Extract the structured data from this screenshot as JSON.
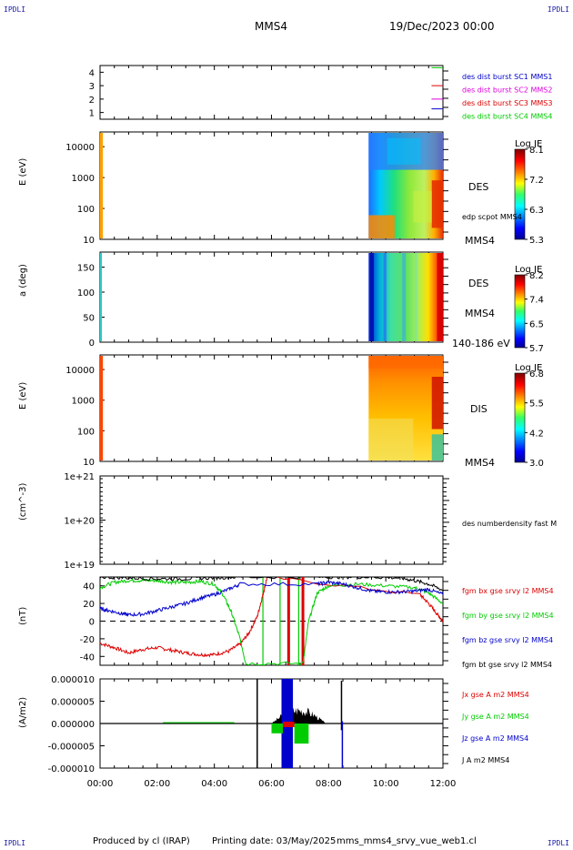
{
  "header": {
    "corner_tl": "IPDLI",
    "corner_tr": "IPDLI",
    "corner_bl": "IPDLI",
    "corner_br": "IPDLI",
    "spacecraft": "MMS4",
    "date": "19/Dec/2023 00:00"
  },
  "footer": {
    "produced_by": "Produced by cl (IRAP)",
    "printing_date": "Printing date: 03/May/2025",
    "filename": "mms_mms4_srvy_vue_web1.cl"
  },
  "colors": {
    "red": "#dd0000",
    "green": "#00cc00",
    "blue": "#0000cc",
    "magenta": "#dd00dd",
    "black": "#000000"
  },
  "chart_data": {
    "type": "line",
    "x_axis": {
      "label": "",
      "ticks": [
        "00:00",
        "02:00",
        "04:00",
        "06:00",
        "08:00",
        "10:00",
        "12:00"
      ],
      "range_hours": [
        0,
        12
      ]
    },
    "panels": [
      {
        "id": "burst",
        "type": "line",
        "ylabel": "",
        "yticks": [
          "4",
          "3",
          "2",
          "1"
        ],
        "ylim": [
          0.5,
          4.5
        ],
        "legend": [
          {
            "name": "des dist burst SC1 MMS1",
            "color": "#0000cc"
          },
          {
            "name": "des dist burst SC2 MMS2",
            "color": "#dd00dd"
          },
          {
            "name": "des dist burst SC3 MMS3",
            "color": "#dd0000"
          },
          {
            "name": "des dist burst SC4 MMS4",
            "color": "#00cc00"
          }
        ],
        "series": [
          {
            "color": "#00cc00",
            "level": 4,
            "x": [
              11.6,
              12
            ]
          },
          {
            "color": "#dd0000",
            "level": 3,
            "x": [
              11.6,
              12
            ]
          },
          {
            "color": "#dd00dd",
            "level": 2,
            "x": [
              11.6,
              12
            ]
          },
          {
            "color": "#0000cc",
            "level": 1,
            "x": [
              11.6,
              12
            ]
          }
        ]
      },
      {
        "id": "des_energy",
        "type": "heatmap",
        "ylabel": "E (eV)",
        "yscale": "log",
        "yticks": [
          "10000",
          "1000",
          "100",
          "10"
        ],
        "ylim": [
          10,
          30000
        ],
        "labels": [
          "DES",
          "edp scpot MMS4",
          "MMS4"
        ],
        "colorbar": {
          "title": "Log JE",
          "ticks": [
            "8.1",
            "7.2",
            "6.3",
            "5.3"
          ]
        },
        "data_intervals_hours": [
          [
            0,
            0.1
          ],
          [
            9.4,
            12
          ]
        ]
      },
      {
        "id": "des_pitch",
        "type": "heatmap",
        "ylabel": "a (deg)",
        "yticks": [
          "150",
          "100",
          "50",
          "0"
        ],
        "ylim": [
          0,
          180
        ],
        "labels": [
          "DES",
          "MMS4",
          "140-186 eV"
        ],
        "colorbar": {
          "title": "Log JE",
          "ticks": [
            "8.2",
            "7.4",
            "6.5",
            "5.7"
          ]
        },
        "data_intervals_hours": [
          [
            0,
            0.05
          ],
          [
            9.4,
            12
          ]
        ]
      },
      {
        "id": "dis_energy",
        "type": "heatmap",
        "ylabel": "E (eV)",
        "yscale": "log",
        "yticks": [
          "10000",
          "1000",
          "100",
          "10"
        ],
        "ylim": [
          10,
          30000
        ],
        "labels": [
          "DIS",
          "MMS4"
        ],
        "colorbar": {
          "title": "Log JE",
          "ticks": [
            "6.8",
            "5.5",
            "4.2",
            "3.0"
          ]
        },
        "data_intervals_hours": [
          [
            0,
            0.1
          ],
          [
            9.4,
            12
          ]
        ]
      },
      {
        "id": "density",
        "type": "line",
        "ylabel": "(cm^-3)",
        "yscale": "log",
        "yticks": [
          "1e+21",
          "1e+20",
          "1e+19"
        ],
        "legend": [
          {
            "name": "des numberdensity fast M",
            "color": "#000000"
          }
        ]
      },
      {
        "id": "fgm",
        "type": "line",
        "ylabel": "(nT)",
        "yticks": [
          "40",
          "20",
          "0",
          "-20",
          "-40"
        ],
        "ylim": [
          -50,
          50
        ],
        "legend": [
          {
            "name": "fgm bx gse srvy l2 MMS4",
            "color": "#dd0000"
          },
          {
            "name": "fgm by gse srvy l2 MMS4",
            "color": "#00cc00"
          },
          {
            "name": "fgm bz gse srvy l2 MMS4",
            "color": "#0000cc"
          },
          {
            "name": "fgm bt gse srvy l2 MMS4",
            "color": "#000000"
          }
        ],
        "series": [
          {
            "name": "bx",
            "color": "#dd0000",
            "x": [
              0,
              0.5,
              1.0,
              1.5,
              2.0,
              2.5,
              3.0,
              3.5,
              4.0,
              4.5,
              4.9,
              5.2,
              5.5,
              5.7,
              5.85,
              11.2,
              11.5,
              11.8,
              12.0
            ],
            "y": [
              -25,
              -30,
              -36,
              -32,
              -30,
              -33,
              -36,
              -38,
              -38,
              -34,
              -26,
              -14,
              5,
              30,
              50,
              30,
              20,
              8,
              0
            ]
          },
          {
            "name": "by",
            "color": "#00cc00",
            "x": [
              0,
              0.5,
              1.0,
              1.5,
              2.0,
              2.5,
              3.0,
              3.5,
              4.0,
              4.3,
              4.6,
              4.9,
              5.1,
              7.1,
              7.3,
              7.6,
              8.0,
              9.0,
              10.0,
              11.0,
              11.5,
              12.0
            ],
            "y": [
              38,
              44,
              46,
              46,
              46,
              44,
              44,
              45,
              42,
              30,
              10,
              -20,
              -48,
              -48,
              0,
              32,
              40,
              42,
              40,
              38,
              32,
              20
            ]
          },
          {
            "name": "bz",
            "color": "#0000cc",
            "x": [
              0,
              0.3,
              0.7,
              1.0,
              1.5,
              2.0,
              2.5,
              3.0,
              3.5,
              4.0,
              4.5,
              4.9,
              7.6,
              8.0,
              8.5,
              9.0,
              9.5,
              10.0,
              10.5,
              11.0,
              11.5,
              12.0
            ],
            "y": [
              14,
              12,
              9,
              7,
              8,
              12,
              16,
              20,
              26,
              30,
              36,
              42,
              42,
              44,
              42,
              38,
              34,
              33,
              33,
              34,
              36,
              30
            ]
          },
          {
            "name": "bt",
            "color": "#000000",
            "x": [
              0,
              1.0,
              2.0,
              3.0,
              4.0,
              4.8,
              7.7,
              8.5,
              9.5,
              10.5,
              11.0,
              11.5,
              12.0
            ],
            "y": [
              50,
              49,
              48,
              48,
              49,
              50,
              50,
              50,
              50,
              49,
              46,
              42,
              35
            ]
          }
        ],
        "vertical_marks": [
          {
            "x": 5.7,
            "color": "#00cc00"
          },
          {
            "x": 6.3,
            "color": "#00cc00"
          },
          {
            "x": 6.6,
            "color": "#dd0000"
          },
          {
            "x": 6.95,
            "color": "#00cc00"
          },
          {
            "x": 7.1,
            "color": "#dd0000"
          }
        ]
      },
      {
        "id": "current",
        "type": "line",
        "ylabel": "(A/m2)",
        "yticks": [
          "0.000010",
          "0.000005",
          "0.000000",
          "-0.000005",
          "-0.000010"
        ],
        "ylim": [
          -1e-05,
          1e-05
        ],
        "legend": [
          {
            "name": "Jx gse A m2 MMS4",
            "color": "#dd0000"
          },
          {
            "name": "Jy gse A m2 MMS4",
            "color": "#00cc00"
          },
          {
            "name": "Jz gse A m2 MMS4",
            "color": "#0000cc"
          },
          {
            "name": "J A m2 MMS4",
            "color": "#000000"
          }
        ],
        "bursts": [
          {
            "color": "#000000",
            "x": [
              6.0,
              7.9
            ],
            "ymax": 4.2e-06
          },
          {
            "color": "#0000cc",
            "x": [
              6.35,
              6.75
            ],
            "ymin": -1e-05,
            "ymax": 1e-05
          },
          {
            "color": "#00cc00",
            "x": [
              6.0,
              6.4
            ],
            "ymin": -2.2e-06
          },
          {
            "color": "#00cc00",
            "x": [
              6.8,
              7.3
            ],
            "ymin": -4.5e-06
          }
        ],
        "spikes": [
          {
            "x": 5.5,
            "color": "#000000",
            "ymin": -1e-05,
            "ymax": 1e-05
          },
          {
            "x": 8.45,
            "color": "#000000",
            "ymin": -1.5e-06,
            "ymax": 9.6e-06
          },
          {
            "x": 8.48,
            "color": "#0000cc",
            "ymin": -1e-05,
            "ymax": 5e-07
          }
        ]
      }
    ]
  }
}
